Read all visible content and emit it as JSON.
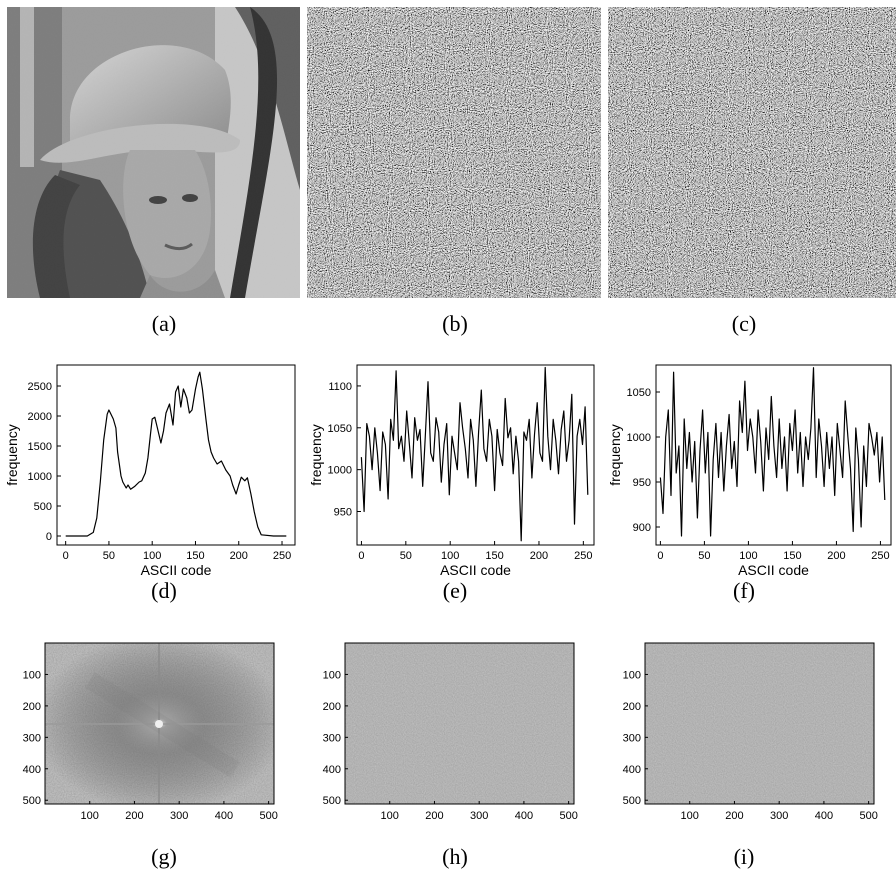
{
  "captions": [
    "(a)",
    "(b)",
    "(c)",
    "(d)",
    "(e)",
    "(f)",
    "(g)",
    "(h)",
    "(i)"
  ],
  "images": [
    {
      "panel": "a",
      "kind": "grayscale-photo"
    },
    {
      "panel": "b",
      "kind": "noise"
    },
    {
      "panel": "c",
      "kind": "noise"
    }
  ],
  "chart_data": [
    {
      "panel": "d",
      "type": "line",
      "xlabel": "ASCII code",
      "ylabel": "frequency",
      "xlim": [
        -10,
        265
      ],
      "ylim": [
        -150,
        2850
      ],
      "xticks": [
        0,
        50,
        100,
        150,
        200,
        250
      ],
      "yticks": [
        0,
        500,
        1000,
        1500,
        2000,
        2500
      ],
      "series": [
        {
          "x": [
            0,
            25,
            32,
            36,
            40,
            44,
            48,
            50,
            55,
            58,
            60,
            64,
            66,
            70,
            72,
            75,
            80,
            85,
            88,
            92,
            95,
            98,
            100,
            103,
            106,
            110,
            113,
            116,
            120,
            124,
            127,
            130,
            133,
            136,
            140,
            143,
            146,
            150,
            153,
            155,
            158,
            162,
            165,
            168,
            171,
            175,
            180,
            185,
            190,
            193,
            197,
            200,
            203,
            207,
            210,
            214,
            218,
            222,
            226,
            240,
            255
          ],
          "y": [
            0,
            0,
            60,
            300,
            900,
            1600,
            2030,
            2100,
            1950,
            1800,
            1400,
            1000,
            900,
            800,
            850,
            780,
            830,
            900,
            920,
            1050,
            1300,
            1700,
            1950,
            1980,
            1800,
            1550,
            1750,
            2050,
            2200,
            1850,
            2400,
            2500,
            2150,
            2450,
            2300,
            2050,
            2100,
            2450,
            2650,
            2730,
            2450,
            1950,
            1600,
            1400,
            1300,
            1200,
            1250,
            1100,
            1000,
            850,
            700,
            850,
            980,
            920,
            970,
            700,
            400,
            150,
            20,
            0,
            0
          ]
        }
      ]
    },
    {
      "panel": "e",
      "type": "line",
      "xlabel": "ASCII code",
      "ylabel": "frequency",
      "xlim": [
        -5,
        262
      ],
      "ylim": [
        910,
        1125
      ],
      "xticks": [
        0,
        50,
        100,
        150,
        200,
        250
      ],
      "yticks": [
        950,
        1000,
        1050,
        1100
      ],
      "series": [
        {
          "x": [
            0,
            3,
            6,
            9,
            12,
            15,
            18,
            21,
            24,
            27,
            30,
            33,
            36,
            39,
            42,
            45,
            48,
            51,
            54,
            57,
            60,
            63,
            66,
            69,
            72,
            75,
            78,
            81,
            84,
            87,
            90,
            93,
            96,
            99,
            102,
            105,
            108,
            111,
            114,
            117,
            120,
            123,
            126,
            129,
            132,
            135,
            138,
            141,
            144,
            147,
            150,
            153,
            156,
            159,
            162,
            165,
            168,
            171,
            174,
            177,
            180,
            183,
            186,
            189,
            192,
            195,
            198,
            201,
            204,
            207,
            210,
            213,
            216,
            219,
            222,
            225,
            228,
            231,
            234,
            237,
            240,
            243,
            246,
            249,
            252,
            255
          ],
          "y": [
            1015,
            950,
            1055,
            1040,
            1000,
            1050,
            1020,
            975,
            1045,
            1030,
            965,
            1060,
            1035,
            1118,
            1025,
            1040,
            1010,
            1070,
            1030,
            990,
            1062,
            1035,
            1048,
            980,
            1040,
            1105,
            1020,
            1010,
            1062,
            1045,
            985,
            1030,
            1055,
            970,
            1040,
            1020,
            1000,
            1080,
            1050,
            1025,
            990,
            1060,
            1035,
            980,
            1045,
            1095,
            1025,
            1010,
            1060,
            1040,
            975,
            1048,
            1020,
            1005,
            1085,
            1038,
            1050,
            995,
            1040,
            1010,
            915,
            1045,
            1035,
            1060,
            990,
            1042,
            1080,
            1020,
            1010,
            1122,
            1040,
            1000,
            1060,
            1035,
            995,
            1048,
            1070,
            1010,
            1035,
            1090,
            935,
            1040,
            1060,
            1030,
            1075,
            970
          ]
        }
      ]
    },
    {
      "panel": "f",
      "type": "line",
      "xlabel": "ASCII code",
      "ylabel": "frequency",
      "xlim": [
        -5,
        262
      ],
      "ylim": [
        880,
        1080
      ],
      "xticks": [
        0,
        50,
        100,
        150,
        200,
        250
      ],
      "yticks": [
        900,
        950,
        1000,
        1050
      ],
      "series": [
        {
          "x": [
            0,
            3,
            6,
            9,
            12,
            15,
            18,
            21,
            24,
            27,
            30,
            33,
            36,
            39,
            42,
            45,
            48,
            51,
            54,
            57,
            60,
            63,
            66,
            69,
            72,
            75,
            78,
            81,
            84,
            87,
            90,
            93,
            96,
            99,
            102,
            105,
            108,
            111,
            114,
            117,
            120,
            123,
            126,
            129,
            132,
            135,
            138,
            141,
            144,
            147,
            150,
            153,
            156,
            159,
            162,
            165,
            168,
            171,
            174,
            177,
            180,
            183,
            186,
            189,
            192,
            195,
            198,
            201,
            204,
            207,
            210,
            213,
            216,
            219,
            222,
            225,
            228,
            231,
            234,
            237,
            240,
            243,
            246,
            249,
            252,
            255
          ],
          "y": [
            955,
            915,
            1000,
            1030,
            935,
            1072,
            960,
            990,
            890,
            1020,
            965,
            1005,
            950,
            995,
            910,
            985,
            1030,
            960,
            1005,
            890,
            975,
            1015,
            955,
            1005,
            940,
            990,
            1025,
            965,
            995,
            945,
            1040,
            1005,
            1062,
            985,
            1020,
            1000,
            960,
            1030,
            995,
            940,
            1010,
            975,
            1045,
            990,
            955,
            1020,
            965,
            1000,
            940,
            1015,
            985,
            1030,
            960,
            1005,
            945,
            1000,
            975,
            1010,
            1077,
            955,
            1020,
            990,
            945,
            1005,
            965,
            1000,
            935,
            1015,
            985,
            955,
            1040,
            1000,
            965,
            895,
            1010,
            975,
            900,
            990,
            945,
            1015,
            1000,
            980,
            1005,
            950,
            1000,
            930
          ]
        }
      ]
    },
    {
      "panel": "g",
      "type": "heatmap",
      "xlim": [
        0,
        512
      ],
      "ylim": [
        512,
        0
      ],
      "xticks": [
        100,
        200,
        300,
        400,
        500
      ],
      "yticks": [
        100,
        200,
        300,
        400,
        500
      ],
      "pattern": "centered-spectrum"
    },
    {
      "panel": "h",
      "type": "heatmap",
      "xlim": [
        0,
        512
      ],
      "ylim": [
        512,
        0
      ],
      "xticks": [
        100,
        200,
        300,
        400,
        500
      ],
      "yticks": [
        100,
        200,
        300,
        400,
        500
      ],
      "pattern": "uniform"
    },
    {
      "panel": "i",
      "type": "heatmap",
      "xlim": [
        0,
        512
      ],
      "ylim": [
        512,
        0
      ],
      "xticks": [
        100,
        200,
        300,
        400,
        500
      ],
      "yticks": [
        100,
        200,
        300,
        400,
        500
      ],
      "pattern": "uniform"
    }
  ]
}
